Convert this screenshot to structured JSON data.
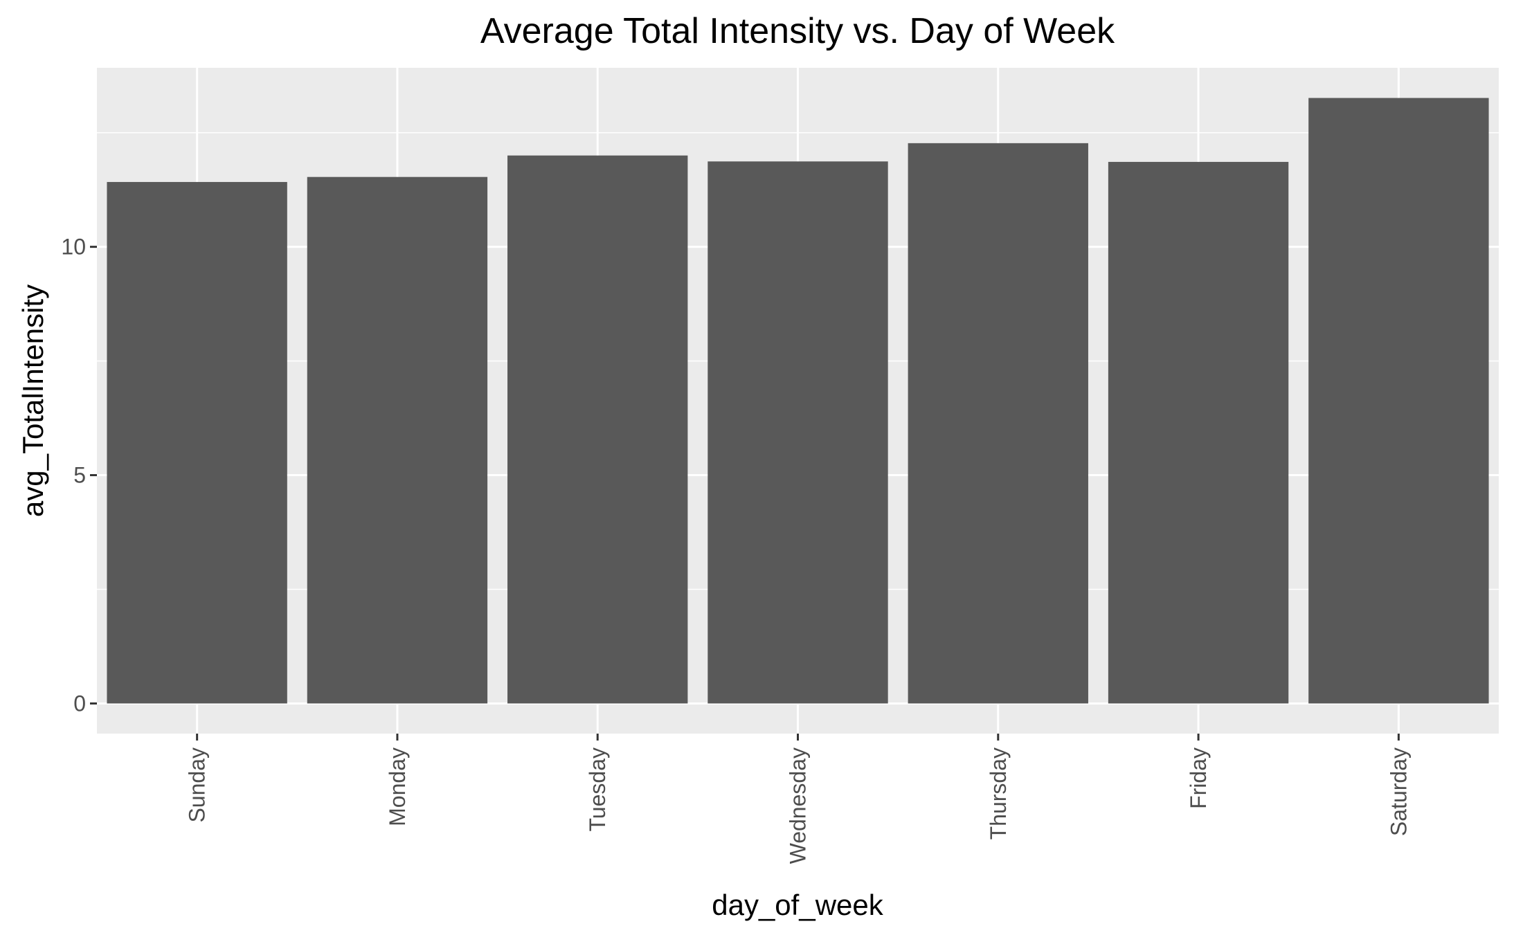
{
  "chart_data": {
    "type": "bar",
    "title": "Average Total Intensity vs. Day of Week",
    "xlabel": "day_of_week",
    "ylabel": "avg_TotalIntensity",
    "categories": [
      "Sunday",
      "Monday",
      "Tuesday",
      "Wednesday",
      "Thursday",
      "Friday",
      "Saturday"
    ],
    "values": [
      11.42,
      11.53,
      12.0,
      11.87,
      12.27,
      11.86,
      13.26
    ],
    "ylim": [
      -0.66,
      13.92
    ],
    "yticks": [
      0,
      5,
      10
    ],
    "ytick_labels": [
      "0",
      "5",
      "10"
    ],
    "grid": true,
    "legend": "none",
    "colors": {
      "bar": "#595959",
      "panel_background": "#ebebeb",
      "grid_major": "#ffffff",
      "grid_minor": "#f5f5f5",
      "tick_label": "#4d4d4d",
      "tick_mark": "#333333"
    }
  }
}
